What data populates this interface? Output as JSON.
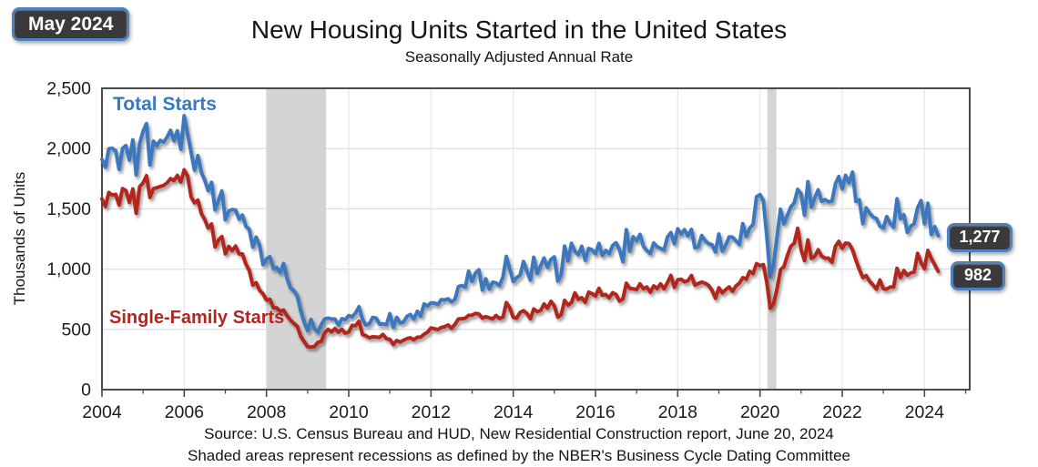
{
  "header": {
    "date_badge": "May 2024",
    "title": "New Housing Units Started in the United States",
    "subtitle": "Seasonally Adjusted Annual Rate"
  },
  "footer": {
    "source": "Source:  U.S. Census Bureau and HUD, New Residential Construction report, June 20, 2024",
    "note": "Shaded areas represent recessions as defined by the NBER's Business Cycle Dating Committee"
  },
  "chart_data": {
    "type": "line",
    "title": "New Housing Units Started in the United States",
    "subtitle": "Seasonally Adjusted Annual Rate",
    "xlabel": "",
    "ylabel": "Thousands of Units",
    "frequency": "monthly",
    "x_start": "2004-01",
    "x_end": "2024-05",
    "xlim": [
      2004,
      2025.1
    ],
    "ylim": [
      0,
      2500
    ],
    "grid": true,
    "legend_position": "labels-on-chart",
    "xticks": [
      {
        "v": 2004,
        "label": "2004"
      },
      {
        "v": 2006,
        "label": "2006"
      },
      {
        "v": 2008,
        "label": "2008"
      },
      {
        "v": 2010,
        "label": "2010"
      },
      {
        "v": 2012,
        "label": "2012"
      },
      {
        "v": 2014,
        "label": "2014"
      },
      {
        "v": 2016,
        "label": "2016"
      },
      {
        "v": 2018,
        "label": "2018"
      },
      {
        "v": 2020,
        "label": "2020"
      },
      {
        "v": 2022,
        "label": "2022"
      },
      {
        "v": 2024,
        "label": "2024"
      }
    ],
    "minor_xticks": [
      2005,
      2007,
      2009,
      2011,
      2013,
      2015,
      2017,
      2019,
      2021,
      2023,
      2025
    ],
    "yticks": [
      {
        "v": 0,
        "label": "0"
      },
      {
        "v": 500,
        "label": "500"
      },
      {
        "v": 1000,
        "label": "1,000"
      },
      {
        "v": 1500,
        "label": "1,500"
      },
      {
        "v": 2000,
        "label": "2,000"
      },
      {
        "v": 2500,
        "label": "2,500"
      }
    ],
    "recession_bands": [
      {
        "from": 2008.0,
        "to": 2009.45
      },
      {
        "from": 2020.18,
        "to": 2020.4
      }
    ],
    "colors": {
      "total": "#3c78be",
      "single_family": "#b2261f",
      "recession_shade": "#d4d4d4",
      "badge_bg": "#3a3a3c",
      "badge_border": "#4e81bd",
      "gridline": "#e0e0e0",
      "axis": "#4a4a4a"
    },
    "end_labels": {
      "total": "1,277",
      "single_family": "982"
    },
    "series": [
      {
        "name": "Total Starts",
        "color_key": "total",
        "values": [
          1911,
          1846,
          1998,
          2003,
          1981,
          1828,
          2002,
          2024,
          1905,
          2072,
          1782,
          2042,
          2144,
          2207,
          1864,
          2061,
          2025,
          2068,
          2054,
          2095,
          2151,
          2065,
          2147,
          1994,
          2273,
          2119,
          1969,
          1821,
          1942,
          1802,
          1737,
          1650,
          1720,
          1491,
          1570,
          1649,
          1409,
          1480,
          1495,
          1490,
          1415,
          1448,
          1354,
          1330,
          1183,
          1264,
          1197,
          1037,
          1084,
          1103,
          1005,
          1013,
          973,
          1046,
          923,
          844,
          820,
          777,
          652,
          560,
          490,
          582,
          505,
          478,
          540,
          585,
          594,
          586,
          585,
          534,
          588,
          581,
          614,
          604,
          636,
          687,
          583,
          536,
          546,
          599,
          594,
          543,
          545,
          539,
          630,
          517,
          600,
          554,
          561,
          608,
          623,
          585,
          650,
          610,
          711,
          694,
          720,
          718,
          706,
          747,
          744,
          754,
          728,
          749,
          854,
          863,
          851,
          983,
          898,
          969,
          994,
          826,
          919,
          835,
          891,
          885,
          863,
          936,
          1105,
          999,
          897,
          928,
          950,
          1063,
          984,
          909,
          1098,
          964,
          1028,
          1092,
          1015,
          1081,
          1101,
          900,
          954,
          1190,
          1067,
          1213,
          1147,
          1120,
          1189,
          1073,
          1171,
          1160,
          1128,
          1213,
          1113,
          1155,
          1128,
          1195,
          1218,
          1164,
          1062,
          1328,
          1149,
          1268,
          1236,
          1288,
          1189,
          1154,
          1129,
          1217,
          1185,
          1172,
          1158,
          1265,
          1303,
          1210,
          1334,
          1290,
          1327,
          1276,
          1329,
          1177,
          1184,
          1279,
          1237,
          1211,
          1202,
          1142,
          1291,
          1149,
          1199,
          1267,
          1265,
          1235,
          1204,
          1377,
          1270,
          1340,
          1371,
          1601,
          1617,
          1567,
          1269,
          938,
          1046,
          1273,
          1497,
          1376,
          1448,
          1514,
          1551,
          1661,
          1625,
          1447,
          1725,
          1514,
          1594,
          1657,
          1562,
          1576,
          1559,
          1563,
          1706,
          1768,
          1666,
          1777,
          1716,
          1805,
          1562,
          1575,
          1377,
          1508,
          1465,
          1432,
          1419,
          1357,
          1340,
          1436,
          1380,
          1348,
          1583,
          1418,
          1451,
          1305,
          1356,
          1376,
          1510,
          1568,
          1376,
          1546,
          1287,
          1352,
          1277
        ]
      },
      {
        "name": "Single-Family Starts",
        "color_key": "single_family",
        "values": [
          1583,
          1520,
          1635,
          1614,
          1620,
          1532,
          1668,
          1650,
          1554,
          1665,
          1464,
          1684,
          1715,
          1775,
          1595,
          1667,
          1675,
          1685,
          1694,
          1715,
          1751,
          1735,
          1777,
          1723,
          1823,
          1772,
          1599,
          1550,
          1572,
          1460,
          1411,
          1340,
          1374,
          1184,
          1242,
          1270,
          1127,
          1188,
          1153,
          1191,
          1125,
          1125,
          1041,
          988,
          868,
          887,
          824,
          794,
          743,
          749,
          680,
          678,
          649,
          660,
          614,
          576,
          549,
          525,
          441,
          398,
          357,
          353,
          358,
          391,
          401,
          470,
          500,
          479,
          507,
          477,
          500,
          468,
          477,
          533,
          531,
          567,
          457,
          447,
          430,
          438,
          436,
          434,
          458,
          423,
          417,
          375,
          408,
          394,
          409,
          423,
          430,
          414,
          434,
          436,
          459,
          477,
          511,
          505,
          498,
          515,
          523,
          536,
          509,
          542,
          585,
          588,
          593,
          616,
          617,
          633,
          627,
          594,
          605,
          596,
          587,
          615,
          590,
          601,
          722,
          679,
          599,
          593,
          640,
          655,
          632,
          588,
          669,
          647,
          657,
          711,
          675,
          733,
          695,
          601,
          622,
          740,
          702,
          722,
          803,
          749,
          763,
          725,
          809,
          796,
          777,
          841,
          784,
          789,
          761,
          804,
          789,
          735,
          752,
          883,
          840,
          837,
          831,
          877,
          835,
          852,
          809,
          860,
          838,
          877,
          837,
          887,
          948,
          848,
          911,
          916,
          894,
          905,
          946,
          867,
          880,
          892,
          883,
          865,
          824,
          758,
          845,
          803,
          829,
          852,
          815,
          860,
          884,
          929,
          916,
          981,
          963,
          1045,
          1028,
          1037,
          890,
          675,
          715,
          839,
          995,
          1021,
          1114,
          1188,
          1216,
          1338,
          1162,
          1070,
          1242,
          1089,
          1107,
          1160,
          1107,
          1091,
          1091,
          1056,
          1188,
          1230,
          1173,
          1217,
          1211,
          1160,
          1075,
          997,
          930,
          946,
          899,
          868,
          834,
          909,
          836,
          834,
          851,
          852,
          1006,
          930,
          988,
          949,
          968,
          975,
          1131,
          1054,
          1004,
          1155,
          1088,
          1036,
          982
        ]
      }
    ]
  }
}
